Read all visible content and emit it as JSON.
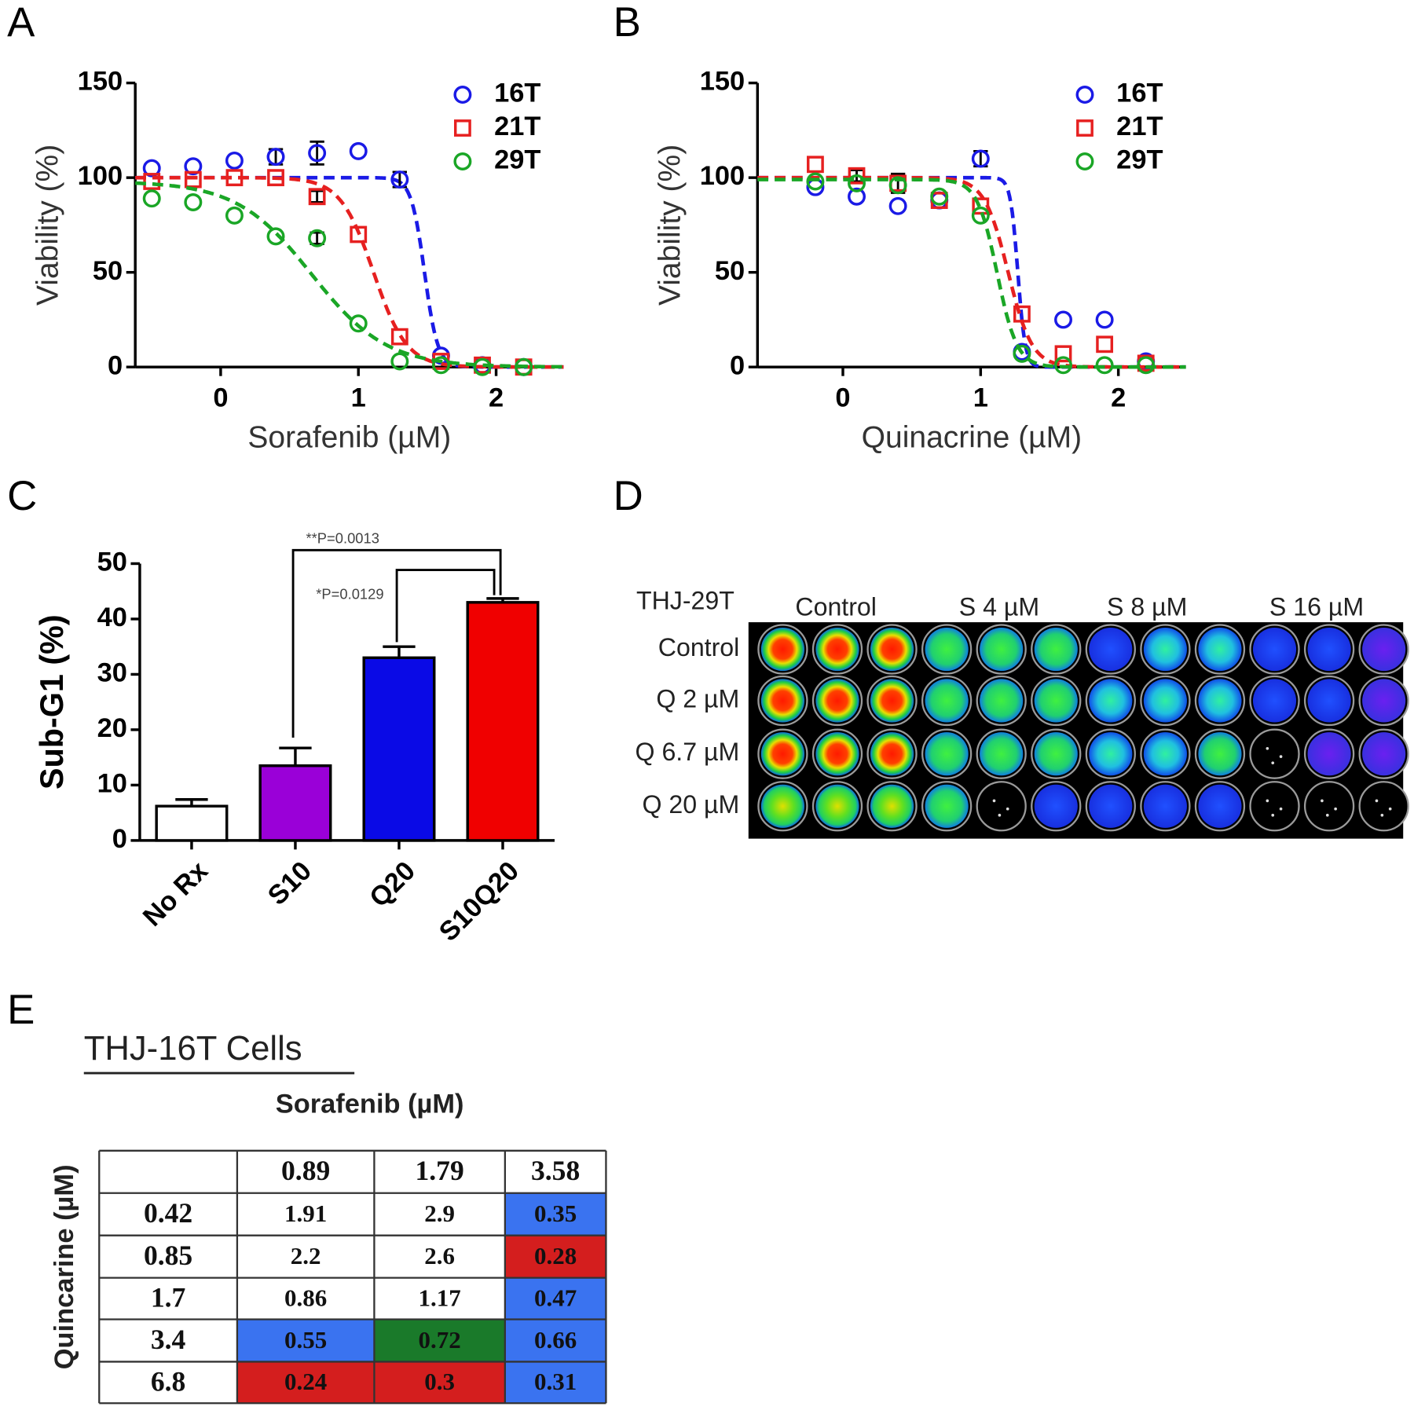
{
  "chart_data": [
    {
      "type": "scatter",
      "panel": "A",
      "xlabel": "Sorafenib (µM)",
      "ylabel": "Viability (%)",
      "x": [
        -0.5,
        -0.2,
        0.1,
        0.4,
        0.7,
        1.0,
        1.3,
        1.6,
        1.9,
        2.2
      ],
      "xlim": [
        -0.62,
        2.49
      ],
      "xticks": [
        0,
        1,
        2
      ],
      "ylim": [
        0,
        150
      ],
      "yticks": [
        0,
        50,
        100,
        150
      ],
      "legend": "upper right",
      "series": [
        {
          "name": "16T",
          "color": "#1a1ae6",
          "marker": "circle",
          "values": [
            105,
            106,
            109,
            111,
            113,
            114,
            99,
            6,
            1,
            0
          ],
          "errors": [
            0,
            0,
            0,
            4,
            6,
            0,
            4,
            0,
            0,
            0
          ],
          "fit": {
            "top": 100,
            "bottom": 0,
            "log_ic50": 1.48,
            "hill": 9
          }
        },
        {
          "name": "21T",
          "color": "#e62020",
          "marker": "square",
          "values": [
            98,
            99,
            100,
            100,
            90,
            70,
            16,
            3,
            1,
            0
          ],
          "errors": [
            0,
            0,
            0,
            0,
            3,
            0,
            0,
            0,
            0,
            0
          ],
          "fit": {
            "top": 100,
            "bottom": 0,
            "log_ic50": 1.11,
            "hill": 3.6
          }
        },
        {
          "name": "29T",
          "color": "#1aa626",
          "marker": "circle",
          "values": [
            89,
            87,
            80,
            69,
            68,
            23,
            3,
            1,
            0,
            0
          ],
          "errors": [
            0,
            0,
            0,
            0,
            3,
            0,
            0,
            0,
            0,
            0
          ],
          "fit": {
            "top": 98,
            "bottom": 0,
            "log_ic50": 0.66,
            "hill": 1.6
          }
        }
      ]
    },
    {
      "type": "scatter",
      "panel": "B",
      "xlabel": "Quinacrine (µM)",
      "ylabel": "Viability (%)",
      "x": [
        -0.2,
        0.1,
        0.4,
        0.7,
        1.0,
        1.3,
        1.6,
        1.9,
        2.2
      ],
      "xlim": [
        -0.62,
        2.49
      ],
      "xticks": [
        0,
        1,
        2
      ],
      "ylim": [
        0,
        150
      ],
      "yticks": [
        0,
        50,
        100,
        150
      ],
      "legend": "upper right",
      "series": [
        {
          "name": "16T",
          "color": "#1a1ae6",
          "marker": "circle",
          "values": [
            95,
            90,
            85,
            88,
            110,
            8,
            25,
            25,
            3
          ],
          "errors": [
            0,
            0,
            0,
            0,
            4,
            0,
            0,
            0,
            0
          ],
          "fit": {
            "top": 100,
            "bottom": 0,
            "log_ic50": 1.27,
            "hill": 16
          }
        },
        {
          "name": "21T",
          "color": "#e62020",
          "marker": "square",
          "values": [
            107,
            101,
            97,
            88,
            85,
            28,
            7,
            12,
            2
          ],
          "errors": [
            0,
            3,
            5,
            0,
            0,
            0,
            0,
            0,
            0
          ],
          "fit": {
            "top": 100,
            "bottom": 0,
            "log_ic50": 1.2,
            "hill": 5
          }
        },
        {
          "name": "29T",
          "color": "#1aa626",
          "marker": "circle",
          "values": [
            98,
            97,
            96,
            90,
            80,
            7,
            1,
            1,
            1
          ],
          "errors": [
            0,
            0,
            0,
            0,
            0,
            0,
            0,
            0,
            0
          ],
          "fit": {
            "top": 99,
            "bottom": 0,
            "log_ic50": 1.12,
            "hill": 6
          }
        }
      ]
    },
    {
      "type": "bar",
      "panel": "C",
      "ylabel": "Sub-G1 (%)",
      "categories": [
        "No Rx",
        "S10",
        "Q20",
        "S10Q20"
      ],
      "values": [
        6.2,
        13.5,
        33,
        43
      ],
      "errors": [
        1.2,
        3.2,
        2,
        0.7
      ],
      "colors": [
        "#ffffff",
        "#9a00d8",
        "#0a0ae6",
        "#f00000"
      ],
      "ylim": [
        0,
        50
      ],
      "yticks": [
        0,
        10,
        20,
        30,
        40,
        50
      ],
      "annotations": [
        "**P=0.0013",
        "*P=0.0129"
      ]
    }
  ],
  "plate": {
    "panel": "D",
    "title": "THJ-29T",
    "columns": [
      "Control",
      "S 4 µM",
      "S 8 µM",
      "S 16 µM"
    ],
    "rows": [
      "Control",
      "Q 2 µM",
      "Q 6.7 µM",
      "Q 20 µM"
    ]
  },
  "table": {
    "panel": "E",
    "title": "THJ-16T Cells",
    "column_title": "Sorafenib (µM)",
    "row_title": "Quincarine (µM)",
    "columns": [
      "0.89",
      "1.79",
      "3.58"
    ],
    "rows": [
      {
        "label": "0.42",
        "values": [
          "1.91",
          "2.9",
          "0.35"
        ],
        "colors": [
          null,
          null,
          "#3a73f0"
        ]
      },
      {
        "label": "0.85",
        "values": [
          "2.2",
          "2.6",
          "0.28"
        ],
        "colors": [
          null,
          null,
          "#d41e1e"
        ]
      },
      {
        "label": "1.7",
        "values": [
          "0.86",
          "1.17",
          "0.47"
        ],
        "colors": [
          null,
          null,
          "#3a73f0"
        ]
      },
      {
        "label": "3.4",
        "values": [
          "0.55",
          "0.72",
          "0.66"
        ],
        "colors": [
          "#3a73f0",
          "#1a7a2a",
          "#3a73f0"
        ]
      },
      {
        "label": "6.8",
        "values": [
          "0.24",
          "0.3",
          "0.31"
        ],
        "colors": [
          "#d41e1e",
          "#d41e1e",
          "#3a73f0"
        ]
      }
    ]
  }
}
